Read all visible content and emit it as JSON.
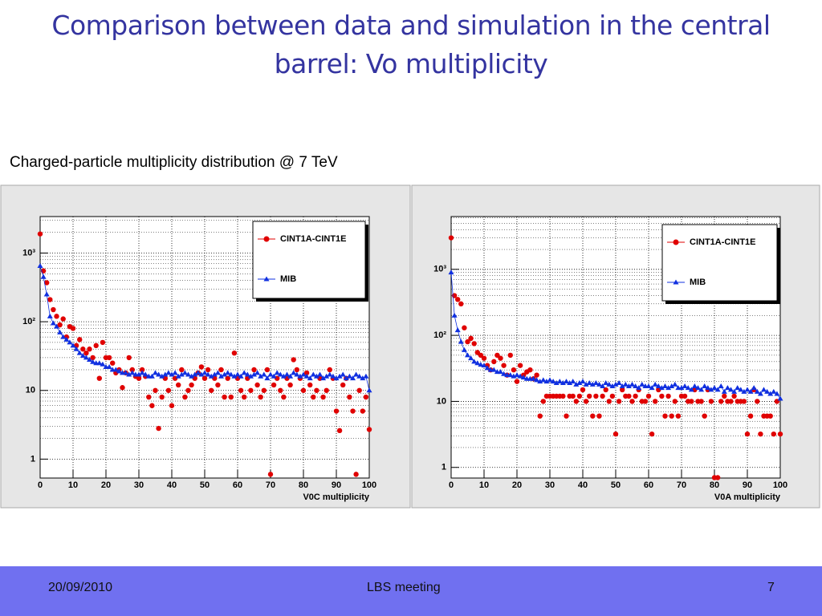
{
  "slide": {
    "title": "Comparison between data and simulation in the central barrel: Vo multiplicity",
    "caption": "Charged-particle multiplicity distribution @ 7 TeV",
    "footer": {
      "date": "20/09/2010",
      "event": "LBS meeting",
      "page": 7
    }
  },
  "chart_data": [
    {
      "type": "scatter",
      "xlabel": "V0C multiplicity",
      "log_y": true,
      "grid": true,
      "legend": "upper right",
      "xlim": [
        0,
        100
      ],
      "ylim": [
        0.53,
        3400
      ],
      "xticks": [
        0,
        10,
        20,
        30,
        40,
        50,
        60,
        70,
        80,
        90,
        100
      ],
      "yticks": [
        1,
        10,
        {
          "value": 100,
          "label": "10²"
        },
        {
          "value": 1000,
          "label": "10³"
        }
      ],
      "x": [
        0,
        1,
        2,
        3,
        4,
        5,
        6,
        7,
        8,
        9,
        10,
        11,
        12,
        13,
        14,
        15,
        16,
        17,
        18,
        19,
        20,
        21,
        22,
        23,
        24,
        25,
        26,
        27,
        28,
        29,
        30,
        31,
        32,
        33,
        34,
        35,
        36,
        37,
        38,
        39,
        40,
        41,
        42,
        43,
        44,
        45,
        46,
        47,
        48,
        49,
        50,
        51,
        52,
        53,
        54,
        55,
        56,
        57,
        58,
        59,
        60,
        61,
        62,
        63,
        64,
        65,
        66,
        67,
        68,
        69,
        70,
        71,
        72,
        73,
        74,
        75,
        76,
        77,
        78,
        79,
        80,
        81,
        82,
        83,
        84,
        85,
        86,
        87,
        88,
        89,
        90,
        91,
        92,
        93,
        94,
        95,
        96,
        97,
        98,
        99,
        100
      ],
      "series": [
        {
          "name": "CINT1A-CINT1E",
          "color": "#e00000",
          "marker": "circle",
          "values": [
            1900,
            550,
            370,
            210,
            150,
            120,
            90,
            110,
            60,
            85,
            80,
            45,
            55,
            40,
            35,
            40,
            30,
            45,
            15,
            50,
            30,
            30,
            25,
            18,
            20,
            11,
            18,
            30,
            20,
            16,
            15,
            20,
            16,
            8,
            6,
            10,
            2.8,
            8,
            15,
            10,
            6,
            15,
            12,
            20,
            8,
            10,
            12,
            15,
            18,
            22,
            15,
            20,
            10,
            15,
            12,
            20,
            8,
            15,
            8,
            35,
            15,
            10,
            8,
            15,
            10,
            20,
            12,
            8,
            10,
            20,
            0.6,
            12,
            15,
            10,
            8,
            15,
            12,
            28,
            20,
            15,
            10,
            18,
            12,
            8,
            10,
            15,
            8,
            10,
            20,
            15,
            5,
            2.6,
            12,
            15,
            8,
            5,
            0.6,
            10,
            5,
            8,
            2.7
          ]
        },
        {
          "name": "MIB",
          "color": "#1030e0",
          "marker": "triangle",
          "line": true,
          "values": [
            650,
            450,
            250,
            120,
            95,
            85,
            70,
            60,
            55,
            50,
            45,
            40,
            35,
            32,
            30,
            28,
            26,
            25,
            25,
            24,
            22,
            22,
            20,
            20,
            19,
            18,
            18,
            17,
            18,
            17,
            17,
            18,
            17,
            16,
            16,
            18,
            17,
            16,
            17,
            18,
            17,
            18,
            16,
            17,
            18,
            17,
            16,
            17,
            18,
            17,
            18,
            17,
            16,
            17,
            18,
            16,
            17,
            18,
            17,
            16,
            17,
            16,
            18,
            17,
            16,
            17,
            18,
            16,
            17,
            15,
            17,
            16,
            18,
            17,
            16,
            17,
            16,
            18,
            17,
            16,
            17,
            16,
            15,
            17,
            16,
            17,
            15,
            16,
            17,
            16,
            15,
            16,
            17,
            15,
            16,
            15,
            17,
            16,
            15,
            16,
            10
          ]
        }
      ]
    },
    {
      "type": "scatter",
      "xlabel": "V0A multiplicity",
      "log_y": true,
      "grid": true,
      "legend": "upper right",
      "xlim": [
        0,
        100
      ],
      "ylim": [
        0.69,
        6300
      ],
      "xticks": [
        0,
        10,
        20,
        30,
        40,
        50,
        60,
        70,
        80,
        90,
        100
      ],
      "yticks": [
        1,
        10,
        {
          "value": 100,
          "label": "10²"
        },
        {
          "value": 1000,
          "label": "10³"
        }
      ],
      "x": [
        0,
        1,
        2,
        3,
        4,
        5,
        6,
        7,
        8,
        9,
        10,
        11,
        12,
        13,
        14,
        15,
        16,
        17,
        18,
        19,
        20,
        21,
        22,
        23,
        24,
        25,
        26,
        27,
        28,
        29,
        30,
        31,
        32,
        33,
        34,
        35,
        36,
        37,
        38,
        39,
        40,
        41,
        42,
        43,
        44,
        45,
        46,
        47,
        48,
        49,
        50,
        51,
        52,
        53,
        54,
        55,
        56,
        57,
        58,
        59,
        60,
        61,
        62,
        63,
        64,
        65,
        66,
        67,
        68,
        69,
        70,
        71,
        72,
        73,
        74,
        75,
        76,
        77,
        78,
        79,
        80,
        81,
        82,
        83,
        84,
        85,
        86,
        87,
        88,
        89,
        90,
        91,
        92,
        93,
        94,
        95,
        96,
        97,
        98,
        99,
        100
      ],
      "series": [
        {
          "name": "CINT1A-CINT1E",
          "color": "#e00000",
          "marker": "circle",
          "values": [
            3000,
            400,
            350,
            300,
            130,
            80,
            90,
            75,
            55,
            50,
            45,
            35,
            30,
            40,
            50,
            45,
            35,
            25,
            50,
            30,
            20,
            35,
            25,
            28,
            30,
            22,
            25,
            6,
            10,
            12,
            12,
            12,
            12,
            12,
            12,
            6,
            12,
            12,
            10,
            12,
            15,
            10,
            12,
            6,
            12,
            6,
            12,
            15,
            10,
            12,
            3.2,
            10,
            15,
            12,
            12,
            10,
            12,
            15,
            10,
            10,
            12,
            3.2,
            10,
            15,
            12,
            6,
            12,
            6,
            10,
            6,
            12,
            12,
            10,
            10,
            15,
            10,
            10,
            6,
            15,
            10,
            0.7,
            0.7,
            10,
            12,
            10,
            10,
            12,
            10,
            10,
            10,
            3.2,
            6,
            15,
            10,
            3.2,
            6,
            6,
            6,
            3.2,
            10,
            3.2
          ]
        },
        {
          "name": "MIB",
          "color": "#1030e0",
          "marker": "triangle",
          "line": true,
          "values": [
            900,
            200,
            120,
            80,
            60,
            50,
            45,
            40,
            38,
            36,
            35,
            32,
            30,
            30,
            28,
            28,
            26,
            25,
            25,
            24,
            25,
            24,
            23,
            22,
            22,
            22,
            21,
            20,
            21,
            20,
            21,
            20,
            19,
            20,
            19,
            20,
            19,
            20,
            18,
            19,
            20,
            18,
            19,
            18,
            19,
            18,
            17,
            19,
            18,
            17,
            18,
            19,
            17,
            18,
            17,
            18,
            17,
            16,
            18,
            17,
            17,
            16,
            18,
            17,
            16,
            17,
            16,
            17,
            18,
            16,
            16,
            17,
            16,
            15,
            17,
            16,
            15,
            17,
            16,
            15,
            16,
            15,
            17,
            14,
            16,
            15,
            14,
            16,
            15,
            14,
            15,
            14,
            16,
            14,
            13,
            15,
            14,
            13,
            14,
            13,
            11
          ]
        }
      ]
    }
  ]
}
